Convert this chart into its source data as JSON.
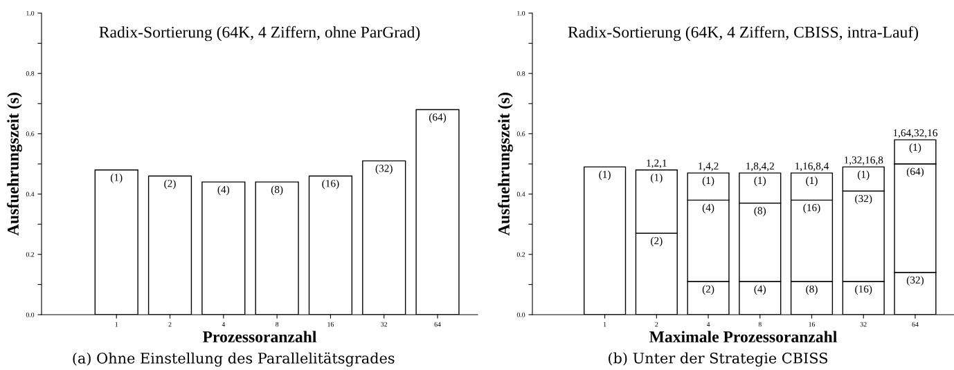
{
  "chart_data": [
    {
      "type": "bar",
      "title": "Radix-Sortierung (64K, 4 Ziffern, ohne ParGrad)",
      "xlabel": "Prozessoranzahl",
      "ylabel": "Ausfuehrungszeit (s)",
      "categories": [
        "1",
        "2",
        "4",
        "8",
        "16",
        "32",
        "64"
      ],
      "series": [
        {
          "color": "#ffffff",
          "values": [
            0.48,
            0.46,
            0.44,
            0.44,
            0.46,
            0.51,
            0.68
          ]
        }
      ],
      "ylim": [
        0,
        1.0
      ],
      "yticks": [
        {
          "value": 0.0,
          "label": "0.0"
        },
        {
          "value": 0.1,
          "label": null
        },
        {
          "value": 0.2,
          "label": "0.2"
        },
        {
          "value": 0.3,
          "label": null
        },
        {
          "value": 0.4,
          "label": "0.4"
        },
        {
          "value": 0.5,
          "label": null
        },
        {
          "value": 0.6,
          "label": "0.6"
        },
        {
          "value": 0.7,
          "label": null
        },
        {
          "value": 0.8,
          "label": "0.8"
        },
        {
          "value": 0.9,
          "label": null
        },
        {
          "value": 1.0,
          "label": "1.0"
        }
      ],
      "annotations": [
        {
          "text": "(1)",
          "x": "1",
          "y": 0.48
        },
        {
          "text": "(2)",
          "x": "2",
          "y": 0.46
        },
        {
          "text": "(4)",
          "x": "4",
          "y": 0.44
        },
        {
          "text": "(8)",
          "x": "8",
          "y": 0.44
        },
        {
          "text": "(16)",
          "x": "16",
          "y": 0.46
        },
        {
          "text": "(32)",
          "x": "32",
          "y": 0.51
        },
        {
          "text": "(64)",
          "x": "64",
          "y": 0.68
        },
        "(a) Ohne Einstellung des Parallelitätsgrades"
      ]
    },
    {
      "type": "bar",
      "stacked": true,
      "title": "Radix-Sortierung (64K, 4 Ziffern, CBISS, intra-Lauf)",
      "xlabel": "Maximale Prozessoranzahl",
      "ylabel": "Ausfuehrungszeit (s)",
      "categories": [
        "1",
        "2",
        "4",
        "8",
        "16",
        "32",
        "64"
      ],
      "series": [
        {
          "color": "#ffffff",
          "values": [
            0.49,
            0.27,
            0.11,
            0.11,
            0.11,
            0.11,
            0.14
          ]
        },
        {
          "color": "#ffffff",
          "values": [
            null,
            0.21,
            0.27,
            0.26,
            0.27,
            0.3,
            0.36
          ]
        },
        {
          "color": "#ffffff",
          "values": [
            null,
            null,
            0.09,
            0.1,
            0.09,
            0.08,
            0.08
          ]
        }
      ],
      "totals": [
        null,
        "1,2,1",
        "1,4,2",
        "1,8,4,2",
        "1,16,8,4",
        "1,32,16,8",
        "1,64,32,16"
      ],
      "ylim": [
        0,
        1.0
      ],
      "yticks": [
        {
          "value": 0.0,
          "label": "0.0"
        },
        {
          "value": 0.1,
          "label": null
        },
        {
          "value": 0.2,
          "label": "0.2"
        },
        {
          "value": 0.3,
          "label": null
        },
        {
          "value": 0.4,
          "label": "0.4"
        },
        {
          "value": 0.5,
          "label": null
        },
        {
          "value": 0.6,
          "label": "0.6"
        },
        {
          "value": 0.7,
          "label": null
        },
        {
          "value": 0.8,
          "label": "0.8"
        },
        {
          "value": 0.9,
          "label": null
        },
        {
          "value": 1.0,
          "label": "1.0"
        }
      ],
      "annotations": [
        {
          "text": "(1)",
          "x": "1",
          "y": 0.49
        },
        {
          "text": "(2)",
          "x": "2",
          "y": 0.27
        },
        {
          "text": "(1)",
          "x": "2",
          "y": 0.48
        },
        {
          "text": "(2)",
          "x": "4",
          "y": 0.11
        },
        {
          "text": "(4)",
          "x": "4",
          "y": 0.38
        },
        {
          "text": "(1)",
          "x": "4",
          "y": 0.47
        },
        {
          "text": "(4)",
          "x": "8",
          "y": 0.11
        },
        {
          "text": "(8)",
          "x": "8",
          "y": 0.37
        },
        {
          "text": "(1)",
          "x": "8",
          "y": 0.47
        },
        {
          "text": "(8)",
          "x": "16",
          "y": 0.11
        },
        {
          "text": "(16)",
          "x": "16",
          "y": 0.38
        },
        {
          "text": "(1)",
          "x": "16",
          "y": 0.47
        },
        {
          "text": "(16)",
          "x": "32",
          "y": 0.11
        },
        {
          "text": "(32)",
          "x": "32",
          "y": 0.41
        },
        {
          "text": "(1)",
          "x": "32",
          "y": 0.49
        },
        {
          "text": "(32)",
          "x": "64",
          "y": 0.14
        },
        {
          "text": "(64)",
          "x": "64",
          "y": 0.5
        },
        {
          "text": "(1)",
          "x": "64",
          "y": 0.58
        },
        "(b) Unter der Strategie CBISS"
      ]
    }
  ]
}
